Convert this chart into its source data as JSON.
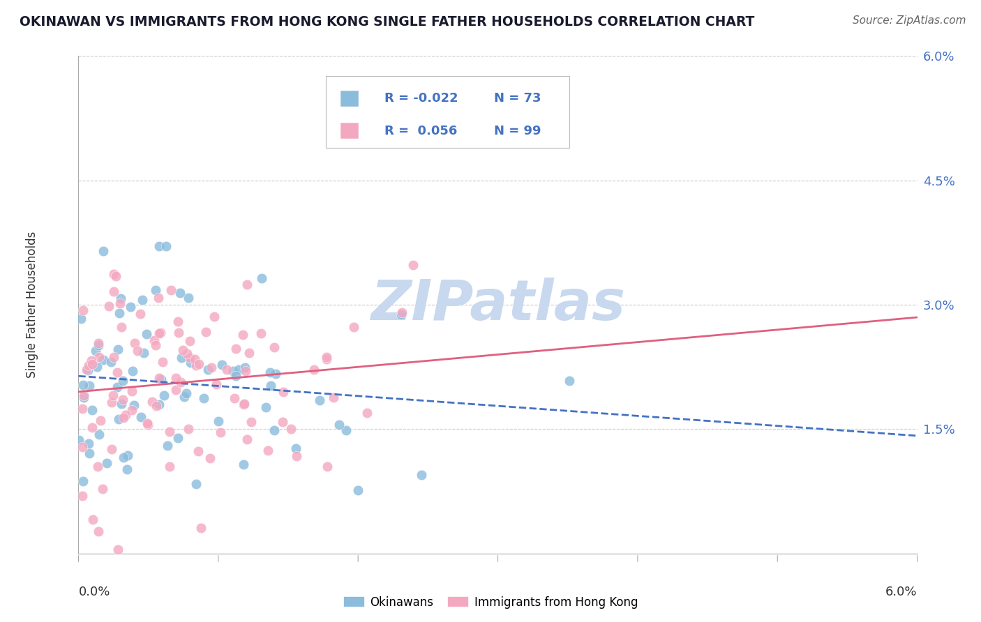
{
  "title": "OKINAWAN VS IMMIGRANTS FROM HONG KONG SINGLE FATHER HOUSEHOLDS CORRELATION CHART",
  "source": "Source: ZipAtlas.com",
  "ylabel": "Single Father Households",
  "xlim": [
    0.0,
    6.0
  ],
  "ylim": [
    0.0,
    6.0
  ],
  "ytick_vals": [
    1.5,
    3.0,
    4.5,
    6.0
  ],
  "ytick_labels": [
    "1.5%",
    "3.0%",
    "4.5%",
    "6.0%"
  ],
  "grid_color": "#c8c8c8",
  "background_color": "#ffffff",
  "watermark": "ZIPatlas",
  "watermark_color": "#c8d8ee",
  "series": [
    {
      "name": "Okinawans",
      "R": -0.022,
      "N": 73,
      "scatter_color": "#8bbcdc",
      "line_color": "#4472c4",
      "line_style": "--",
      "seed": 10
    },
    {
      "name": "Immigrants from Hong Kong",
      "R": 0.056,
      "N": 99,
      "scatter_color": "#f4a8c0",
      "line_color": "#e06080",
      "line_style": "-",
      "seed": 20
    }
  ]
}
